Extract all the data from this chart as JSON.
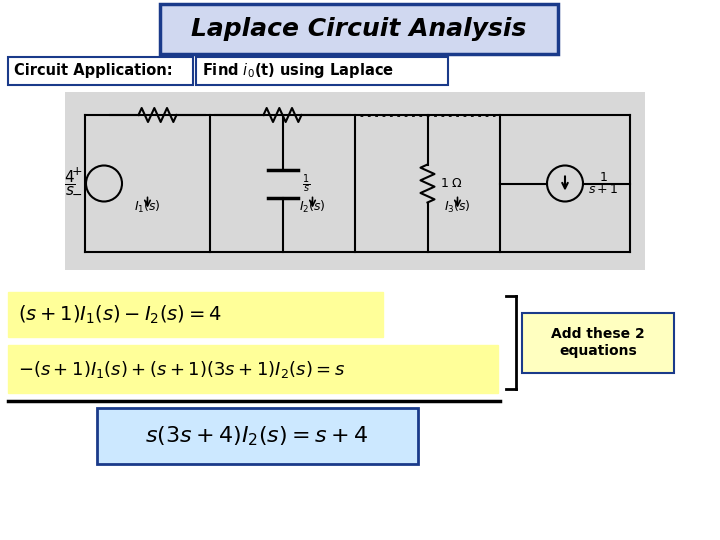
{
  "title": "Laplace Circuit Analysis",
  "title_bg": "#d0d8f0",
  "title_border": "#1a3a8a",
  "title_color": "black",
  "subtitle_left": "Circuit Application:",
  "subtitle_right": "Find i₀(t) using Laplace",
  "annotation": "Add these 2\nequations",
  "bg_color": "white",
  "eq_bg": "#ffff99",
  "result_bg": "#cce8ff",
  "circuit_bg": "#d8d8d8",
  "border_color": "#1a3a8a"
}
